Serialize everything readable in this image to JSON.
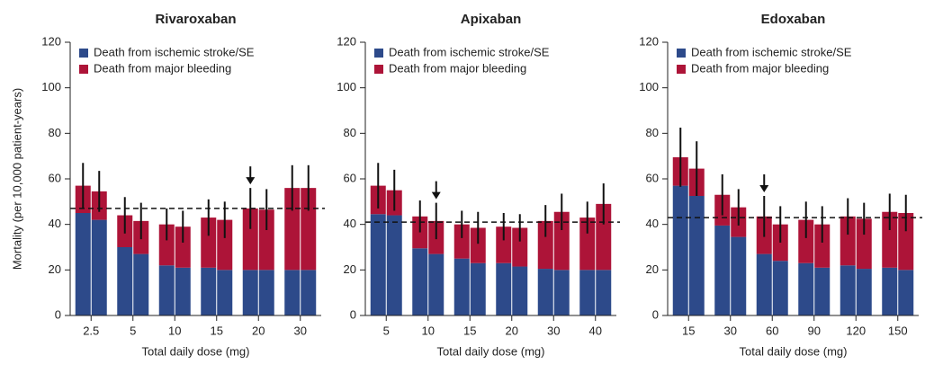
{
  "chart_data": [
    {
      "type": "bar",
      "stacked": true,
      "title": "Rivaroxaban",
      "xlabel": "Total daily dose (mg)",
      "ylabel": "Mortality (per 10,000 patient-years)",
      "categories": [
        "2.5",
        "5",
        "10",
        "15",
        "20",
        "30"
      ],
      "series": [
        {
          "name": "Death from ischemic stroke/SE",
          "color": "#2d4a8a",
          "values": [
            [
              45,
              42
            ],
            [
              30,
              27
            ],
            [
              22,
              21
            ],
            [
              21,
              20
            ],
            [
              20,
              20
            ],
            [
              20,
              20
            ]
          ]
        },
        {
          "name": "Death from major bleeding",
          "color": "#ad1438",
          "values": [
            [
              12,
              12.5
            ],
            [
              14,
              14.5
            ],
            [
              18,
              18
            ],
            [
              22,
              22
            ],
            [
              27,
              26.5
            ],
            [
              36,
              36
            ]
          ]
        }
      ],
      "errors": [
        [
          10,
          9
        ],
        [
          8,
          8
        ],
        [
          7,
          7
        ],
        [
          8,
          8
        ],
        [
          9,
          9
        ],
        [
          10,
          10
        ]
      ],
      "reference_line": 47,
      "arrow": [
        4,
        0
      ],
      "ylim": [
        0,
        120
      ],
      "yticks": [
        0,
        20,
        40,
        60,
        80,
        100,
        120
      ]
    },
    {
      "type": "bar",
      "stacked": true,
      "title": "Apixaban",
      "xlabel": "Total daily dose (mg)",
      "categories": [
        "5",
        "10",
        "15",
        "20",
        "30",
        "40"
      ],
      "series": [
        {
          "name": "Death from ischemic stroke/SE",
          "color": "#2d4a8a",
          "values": [
            [
              44.5,
              44
            ],
            [
              29.5,
              27
            ],
            [
              25,
              23
            ],
            [
              23,
              21.5
            ],
            [
              20.5,
              20
            ],
            [
              20,
              20
            ]
          ]
        },
        {
          "name": "Death from major bleeding",
          "color": "#ad1438",
          "values": [
            [
              12.5,
              11
            ],
            [
              14,
              14.5
            ],
            [
              15,
              15.5
            ],
            [
              16,
              17
            ],
            [
              21,
              25.5
            ],
            [
              23,
              29
            ]
          ]
        }
      ],
      "errors": [
        [
          10,
          9
        ],
        [
          7,
          8
        ],
        [
          6,
          7
        ],
        [
          6,
          6
        ],
        [
          7,
          8
        ],
        [
          7,
          9
        ]
      ],
      "reference_line": 41,
      "arrow": [
        1,
        1
      ],
      "ylim": [
        0,
        120
      ],
      "yticks": [
        0,
        20,
        40,
        60,
        80,
        100,
        120
      ]
    },
    {
      "type": "bar",
      "stacked": true,
      "title": "Edoxaban",
      "xlabel": "Total daily dose (mg)",
      "categories": [
        "15",
        "30",
        "60",
        "90",
        "120",
        "150"
      ],
      "series": [
        {
          "name": "Death from ischemic stroke/SE",
          "color": "#2d4a8a",
          "values": [
            [
              57,
              52.5
            ],
            [
              39.5,
              34.5
            ],
            [
              27,
              24
            ],
            [
              23,
              21
            ],
            [
              22,
              20.5
            ],
            [
              21,
              20
            ]
          ]
        },
        {
          "name": "Death from major bleeding",
          "color": "#ad1438",
          "values": [
            [
              12.5,
              12
            ],
            [
              13.5,
              13
            ],
            [
              16.5,
              16
            ],
            [
              19,
              19
            ],
            [
              21.5,
              22
            ],
            [
              24.5,
              25
            ]
          ]
        }
      ],
      "errors": [
        [
          13,
          12
        ],
        [
          9,
          8
        ],
        [
          9,
          8
        ],
        [
          8,
          8
        ],
        [
          8,
          7
        ],
        [
          8,
          8
        ]
      ],
      "reference_line": 43,
      "arrow": [
        2,
        0
      ],
      "ylim": [
        0,
        120
      ],
      "yticks": [
        0,
        20,
        40,
        60,
        80,
        100,
        120
      ]
    }
  ]
}
